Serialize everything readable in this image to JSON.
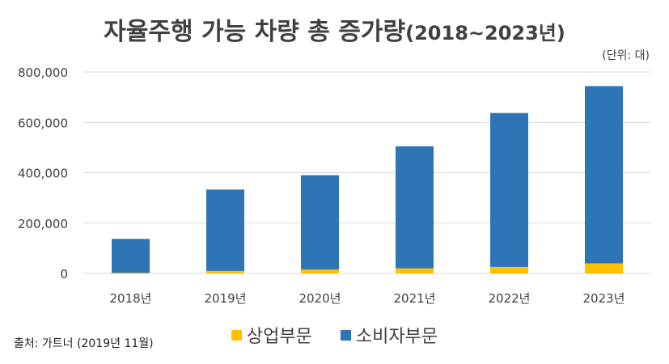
{
  "title": {
    "main": "자율주행 가능 차량 총 증가량",
    "sub": "(2018~2023년)"
  },
  "unit_note": "(단위: 대)",
  "source_note": "출처: 가트너 (2019년 11월)",
  "colors": {
    "commercial": "#FFC000",
    "consumer": "#2E75B6",
    "grid": "#D9D9D9",
    "text": "#404040"
  },
  "chart_data": {
    "type": "bar",
    "stacked": true,
    "categories": [
      "2018년",
      "2019년",
      "2020년",
      "2021년",
      "2022년",
      "2023년"
    ],
    "series": [
      {
        "name": "상업부문",
        "color": "#FFC000",
        "values": [
          2000,
          10000,
          15000,
          20000,
          26000,
          40000
        ]
      },
      {
        "name": "소비자부문",
        "color": "#2E75B6",
        "values": [
          135000,
          323000,
          375000,
          485000,
          611000,
          704000
        ]
      }
    ],
    "yticks": [
      "0",
      "200,000",
      "400,000",
      "600,000",
      "800,000"
    ],
    "ylim": [
      0,
      800000
    ],
    "grid": true,
    "legend": "bottom"
  }
}
